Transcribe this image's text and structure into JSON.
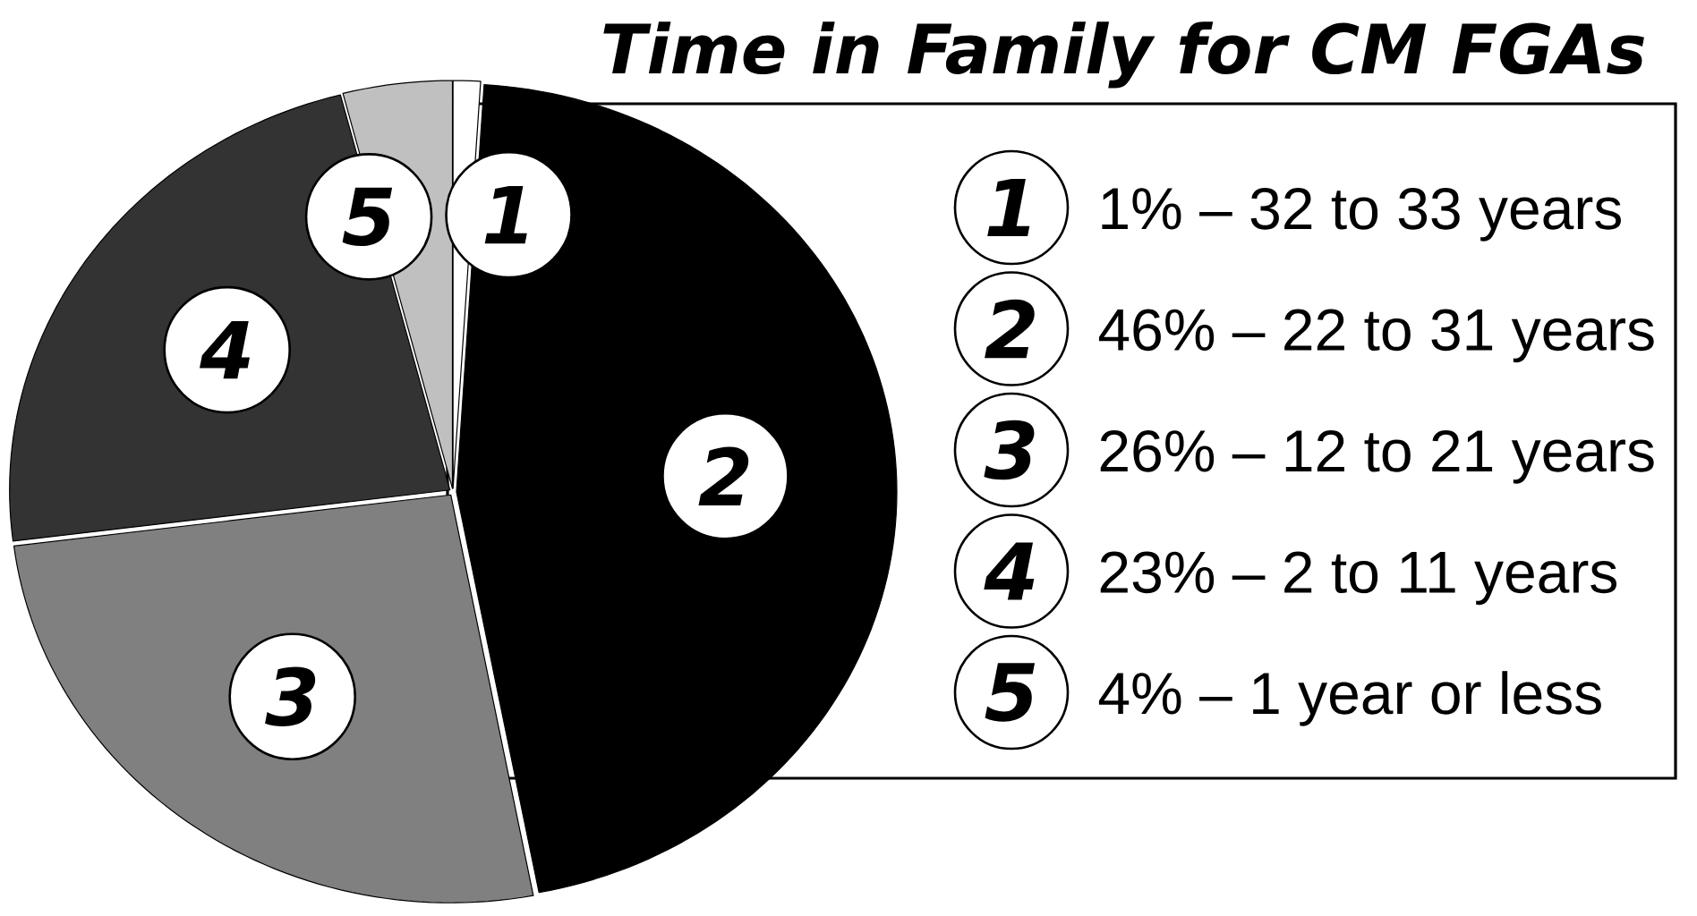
{
  "chart_data": {
    "type": "pie",
    "title": "Time in Family for CM FGAs",
    "categories": [
      "1% – 32 to 33 years",
      "46% – 22 to 31 years",
      "26% – 12 to 21 years",
      "23% – 2 to 11 years",
      "4% – 1 year or less"
    ],
    "values": [
      1,
      46,
      26,
      23,
      4
    ],
    "colors": [
      "#ffffff",
      "#000000",
      "#808080",
      "#333333",
      "#c0c0c0"
    ],
    "legend": "right",
    "annotations": [
      "1",
      "2",
      "3",
      "4",
      "5"
    ]
  }
}
